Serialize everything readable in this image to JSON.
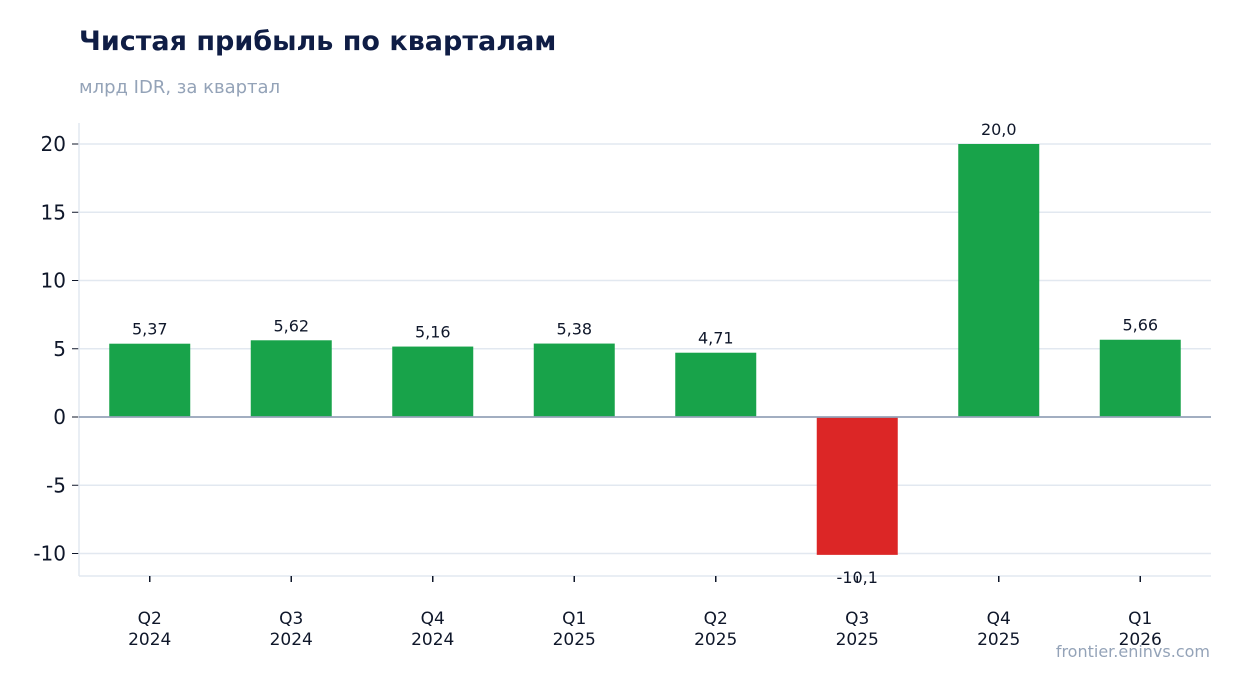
{
  "title": "Чистая прибыль по кварталам",
  "subtitle": "млрд IDR, за квартал",
  "watermark": "frontier.eninvs.com",
  "colors": {
    "positive": "#18a34a",
    "negative": "#dc2626",
    "grid": "#e2e8f0",
    "zero_line": "#94a3b8",
    "title": "#0f1d45",
    "muted": "#94a3b8",
    "text": "#0f172a"
  },
  "chart_data": {
    "type": "bar",
    "title": "Чистая прибыль по кварталам",
    "subtitle": "млрд IDR, за квартал",
    "categories": [
      [
        "Q2",
        "2024"
      ],
      [
        "Q3",
        "2024"
      ],
      [
        "Q4",
        "2024"
      ],
      [
        "Q1",
        "2025"
      ],
      [
        "Q2",
        "2025"
      ],
      [
        "Q3",
        "2025"
      ],
      [
        "Q4",
        "2025"
      ],
      [
        "Q1",
        "2026"
      ]
    ],
    "values": [
      5.37,
      5.62,
      5.16,
      5.38,
      4.71,
      -10.1,
      20.0,
      5.66
    ],
    "value_labels": [
      "5,37",
      "5,62",
      "5,16",
      "5,38",
      "4,71",
      "-10,1",
      "20,0",
      "5,66"
    ],
    "yticks": [
      20,
      15,
      10,
      5,
      0,
      -5,
      -10
    ],
    "ytick_labels": [
      "20",
      "15",
      "10",
      "5",
      "0",
      "-5",
      "-10"
    ],
    "ylim": [
      -11.6,
      21.6
    ],
    "grid": true,
    "legend": "none"
  }
}
